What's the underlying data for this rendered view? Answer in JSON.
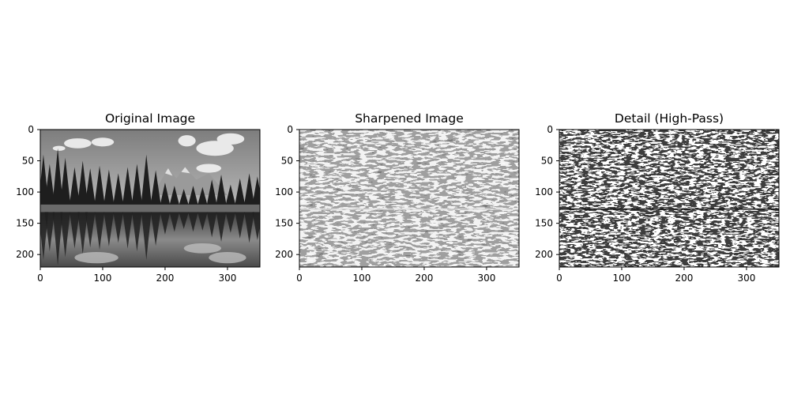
{
  "figure": {
    "panels": [
      {
        "title": "Original Image",
        "kind": "photo",
        "x_ticks": [
          "0",
          "100",
          "200",
          "300"
        ],
        "y_ticks": [
          "0",
          "50",
          "100",
          "150",
          "200"
        ]
      },
      {
        "title": "Sharpened Image",
        "kind": "sharpened",
        "x_ticks": [
          "0",
          "100",
          "200",
          "300"
        ],
        "y_ticks": [
          "0",
          "50",
          "100",
          "150",
          "200"
        ]
      },
      {
        "title": "Detail (High-Pass)",
        "kind": "highpass",
        "x_ticks": [
          "0",
          "100",
          "200",
          "300"
        ],
        "y_ticks": [
          "0",
          "50",
          "100",
          "150",
          "200"
        ]
      }
    ],
    "colors": {
      "background": "#ffffff",
      "axis": "#000000"
    }
  }
}
